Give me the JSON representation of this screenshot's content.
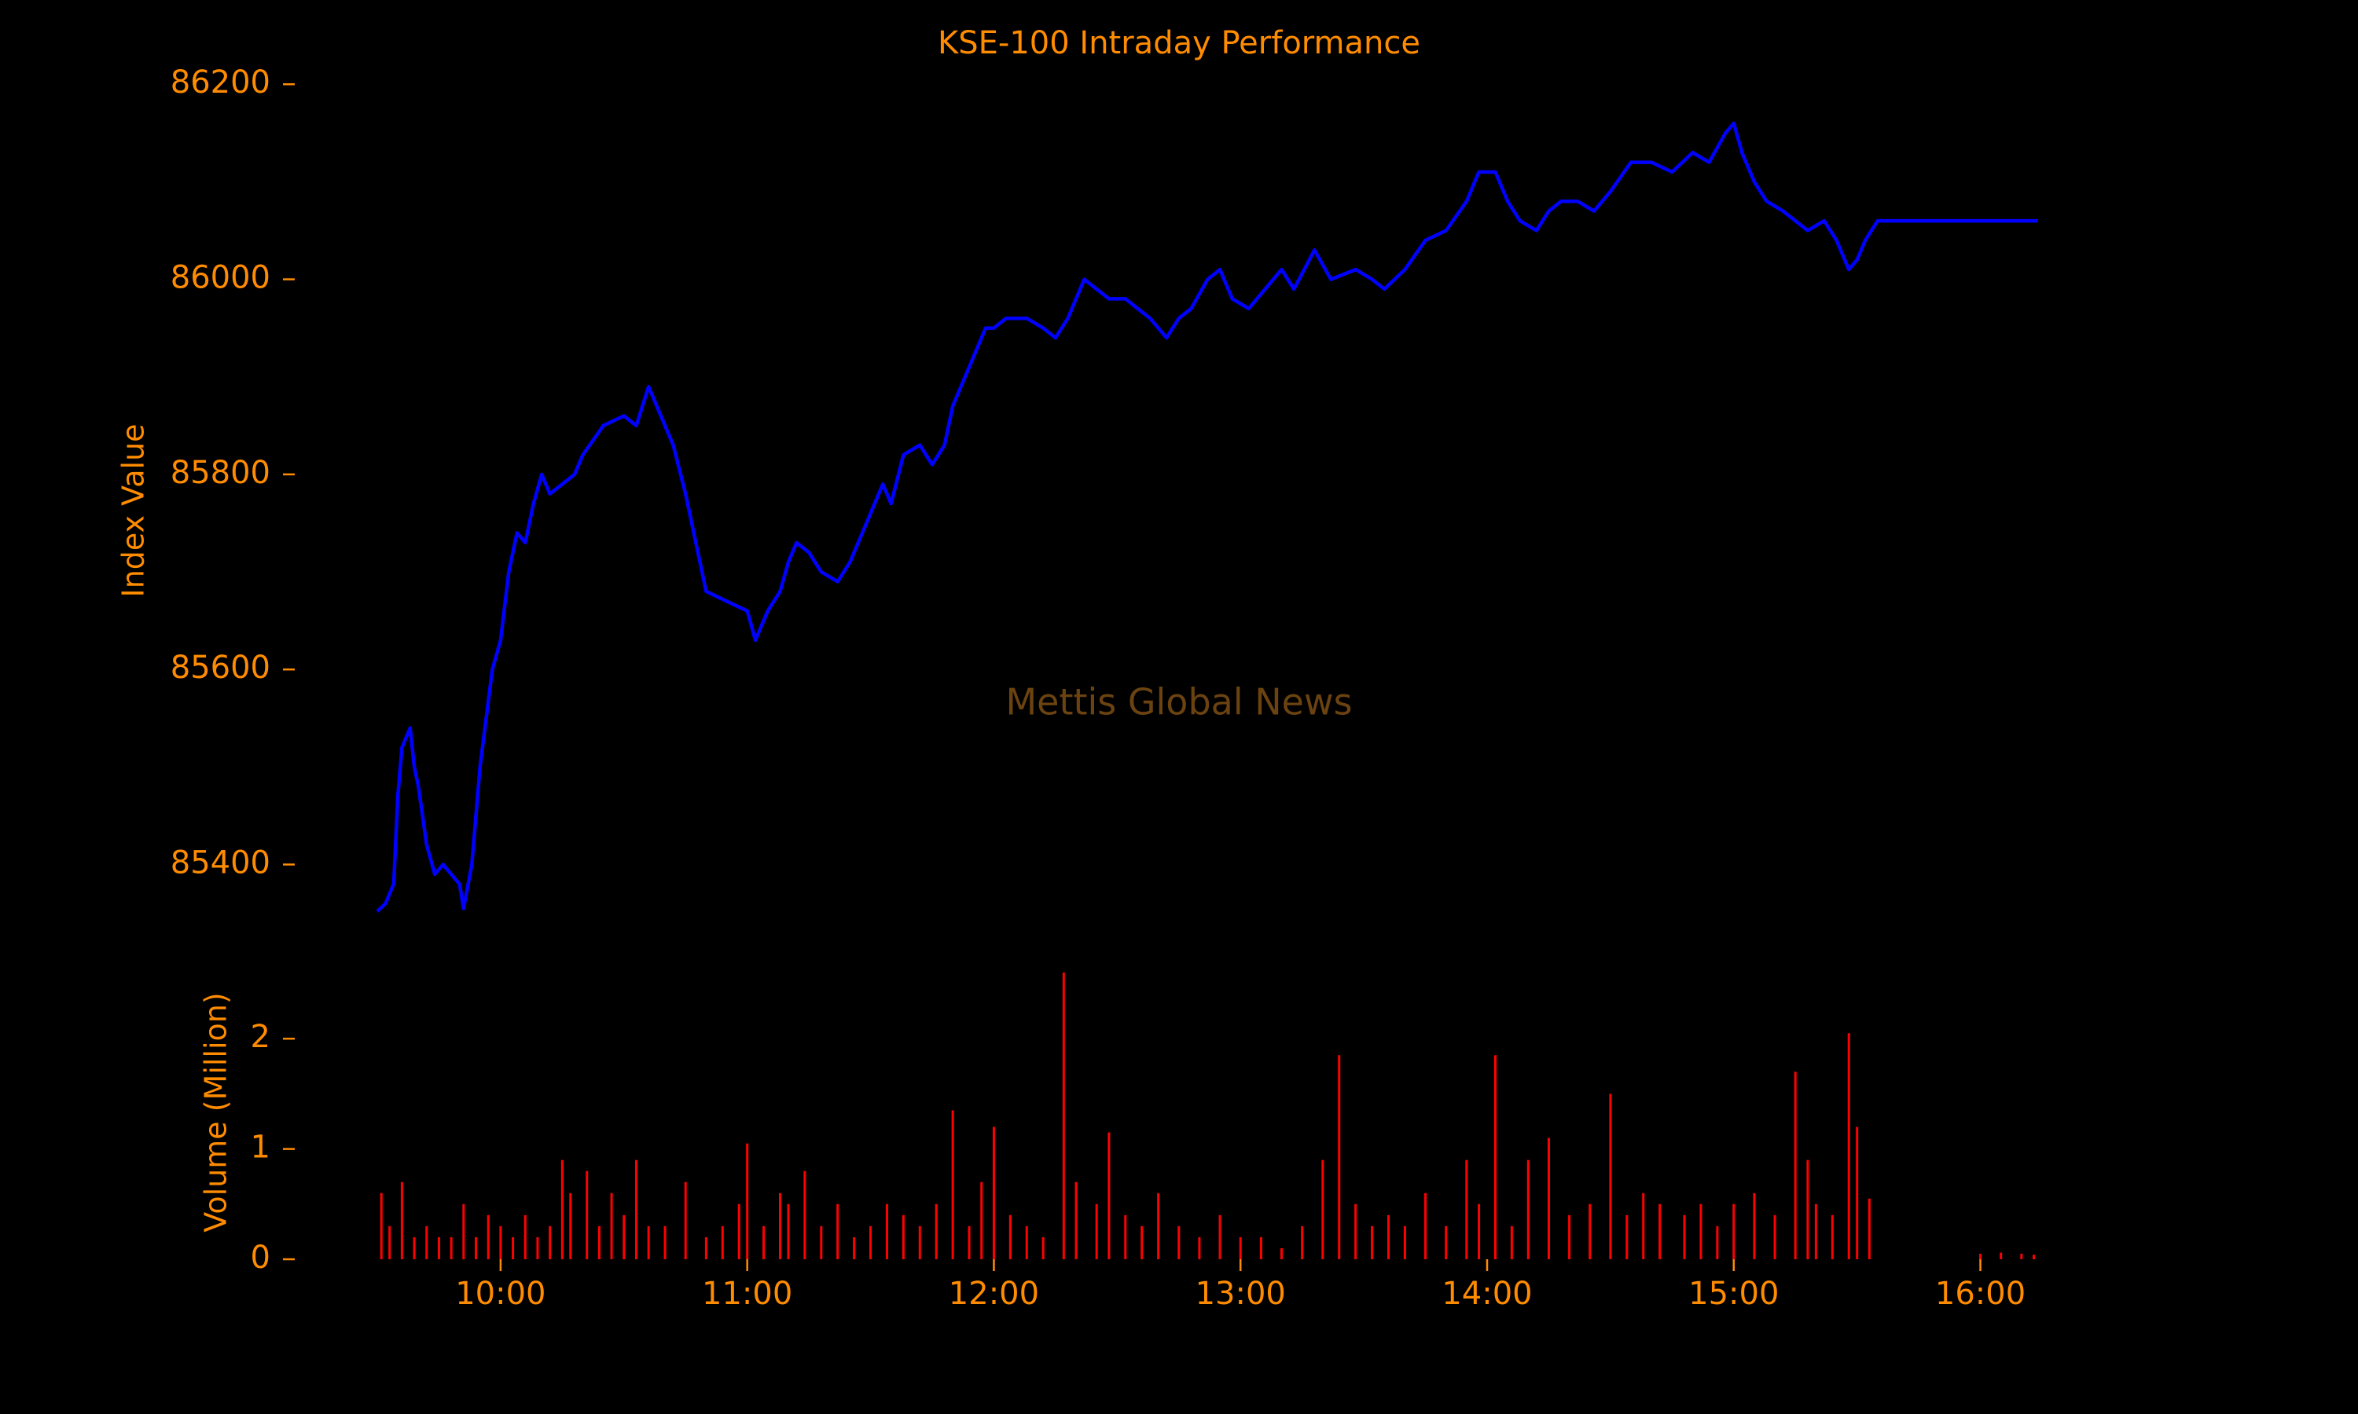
{
  "chart_data": [
    {
      "type": "line",
      "title": "KSE-100 Intraday Performance",
      "ylabel": "Index Value",
      "annotation": "Mettis Global News",
      "color": "#0000ff",
      "x": [
        "09:30",
        "09:32",
        "09:34",
        "09:35",
        "09:36",
        "09:37",
        "09:38",
        "09:39",
        "09:40",
        "09:42",
        "09:44",
        "09:46",
        "09:48",
        "09:50",
        "09:51",
        "09:53",
        "09:55",
        "09:58",
        "10:00",
        "10:02",
        "10:04",
        "10:06",
        "10:08",
        "10:10",
        "10:12",
        "10:15",
        "10:18",
        "10:20",
        "10:25",
        "10:30",
        "10:33",
        "10:36",
        "10:38",
        "10:42",
        "10:45",
        "10:48",
        "10:50",
        "10:55",
        "11:00",
        "11:02",
        "11:05",
        "11:08",
        "11:10",
        "11:12",
        "11:15",
        "11:18",
        "11:22",
        "11:25",
        "11:28",
        "11:30",
        "11:33",
        "11:35",
        "11:38",
        "11:42",
        "11:45",
        "11:48",
        "11:50",
        "11:53",
        "11:55",
        "11:58",
        "12:00",
        "12:03",
        "12:08",
        "12:12",
        "12:15",
        "12:18",
        "12:22",
        "12:25",
        "12:28",
        "12:32",
        "12:35",
        "12:38",
        "12:42",
        "12:45",
        "12:48",
        "12:52",
        "12:55",
        "12:58",
        "13:02",
        "13:06",
        "13:10",
        "13:13",
        "13:18",
        "13:22",
        "13:28",
        "13:32",
        "13:35",
        "13:40",
        "13:45",
        "13:50",
        "13:55",
        "13:58",
        "14:02",
        "14:05",
        "14:08",
        "14:12",
        "14:15",
        "14:18",
        "14:22",
        "14:26",
        "14:30",
        "14:35",
        "14:40",
        "14:45",
        "14:50",
        "14:54",
        "14:58",
        "15:00",
        "15:02",
        "15:05",
        "15:08",
        "15:12",
        "15:15",
        "15:18",
        "15:22",
        "15:25",
        "15:28",
        "15:30",
        "15:32",
        "15:35",
        "15:40",
        "16:14"
      ],
      "values": [
        85352,
        85360,
        85380,
        85470,
        85520,
        85530,
        85540,
        85500,
        85480,
        85420,
        85390,
        85400,
        85390,
        85380,
        85355,
        85400,
        85500,
        85600,
        85630,
        85700,
        85740,
        85730,
        85770,
        85800,
        85780,
        85790,
        85800,
        85820,
        85850,
        85860,
        85850,
        85890,
        85870,
        85830,
        85780,
        85720,
        85680,
        85670,
        85660,
        85630,
        85660,
        85680,
        85710,
        85730,
        85720,
        85700,
        85690,
        85710,
        85740,
        85760,
        85790,
        85770,
        85820,
        85830,
        85810,
        85830,
        85870,
        85900,
        85920,
        85950,
        85950,
        85960,
        85960,
        85950,
        85940,
        85960,
        86000,
        85990,
        85980,
        85980,
        85970,
        85960,
        85940,
        85960,
        85970,
        86000,
        86010,
        85980,
        85970,
        85990,
        86010,
        85990,
        86030,
        86000,
        86010,
        86000,
        85990,
        86010,
        86040,
        86050,
        86080,
        86110,
        86110,
        86080,
        86060,
        86050,
        86070,
        86080,
        86080,
        86070,
        86090,
        86120,
        86120,
        86110,
        86130,
        86120,
        86150,
        86160,
        86130,
        86100,
        86080,
        86070,
        86060,
        86050,
        86060,
        86040,
        86010,
        86020,
        86040,
        86060,
        86060,
        86060
      ],
      "xlim": [
        "09:30",
        "16:15"
      ],
      "ylim": [
        85340,
        86230
      ],
      "yticks": [
        85400,
        85600,
        85800,
        86000,
        86200
      ]
    },
    {
      "type": "bar",
      "ylabel": "Volume (Million)",
      "color": "#ff0000",
      "x": [
        "09:31",
        "09:33",
        "09:36",
        "09:39",
        "09:42",
        "09:45",
        "09:48",
        "09:51",
        "09:54",
        "09:57",
        "10:00",
        "10:03",
        "10:06",
        "10:09",
        "10:12",
        "10:15",
        "10:17",
        "10:21",
        "10:24",
        "10:27",
        "10:30",
        "10:33",
        "10:36",
        "10:40",
        "10:45",
        "10:50",
        "10:54",
        "10:58",
        "11:00",
        "11:04",
        "11:08",
        "11:10",
        "11:14",
        "11:18",
        "11:22",
        "11:26",
        "11:30",
        "11:34",
        "11:38",
        "11:42",
        "11:46",
        "11:50",
        "11:54",
        "11:57",
        "12:00",
        "12:04",
        "12:08",
        "12:12",
        "12:17",
        "12:20",
        "12:25",
        "12:28",
        "12:32",
        "12:36",
        "12:40",
        "12:45",
        "12:50",
        "12:55",
        "13:00",
        "13:05",
        "13:10",
        "13:15",
        "13:20",
        "13:24",
        "13:28",
        "13:32",
        "13:36",
        "13:40",
        "13:45",
        "13:50",
        "13:55",
        "13:58",
        "14:02",
        "14:06",
        "14:10",
        "14:15",
        "14:20",
        "14:25",
        "14:30",
        "14:34",
        "14:38",
        "14:42",
        "14:48",
        "14:52",
        "14:56",
        "15:00",
        "15:05",
        "15:10",
        "15:15",
        "15:18",
        "15:20",
        "15:24",
        "15:28",
        "15:30",
        "15:33",
        "16:00",
        "16:05",
        "16:10",
        "16:13"
      ],
      "values": [
        0.6,
        0.3,
        0.7,
        0.2,
        0.3,
        0.2,
        0.2,
        0.5,
        0.2,
        0.4,
        0.3,
        0.2,
        0.4,
        0.2,
        0.3,
        0.9,
        0.6,
        0.8,
        0.3,
        0.6,
        0.4,
        0.9,
        0.3,
        0.3,
        0.7,
        0.2,
        0.3,
        0.5,
        1.05,
        0.3,
        0.6,
        0.5,
        0.8,
        0.3,
        0.5,
        0.2,
        0.3,
        0.5,
        0.4,
        0.3,
        0.5,
        1.35,
        0.3,
        0.7,
        1.2,
        0.4,
        0.3,
        0.2,
        2.6,
        0.7,
        0.5,
        1.15,
        0.4,
        0.3,
        0.6,
        0.3,
        0.2,
        0.4,
        0.2,
        0.2,
        0.1,
        0.3,
        0.9,
        1.85,
        0.5,
        0.3,
        0.4,
        0.3,
        0.6,
        0.3,
        0.9,
        0.5,
        1.85,
        0.3,
        0.9,
        1.1,
        0.4,
        0.5,
        1.5,
        0.4,
        0.6,
        0.5,
        0.4,
        0.5,
        0.3,
        0.5,
        0.6,
        0.4,
        1.7,
        0.9,
        0.5,
        0.4,
        2.05,
        1.2,
        0.55,
        0.05,
        0.06,
        0.05,
        0.04
      ],
      "xlim": [
        "09:30",
        "16:15"
      ],
      "xticks": [
        "10:00",
        "11:00",
        "12:00",
        "13:00",
        "14:00",
        "15:00",
        "16:00"
      ],
      "ylim": [
        0,
        2.6
      ],
      "yticks": [
        0,
        1,
        2
      ]
    }
  ]
}
